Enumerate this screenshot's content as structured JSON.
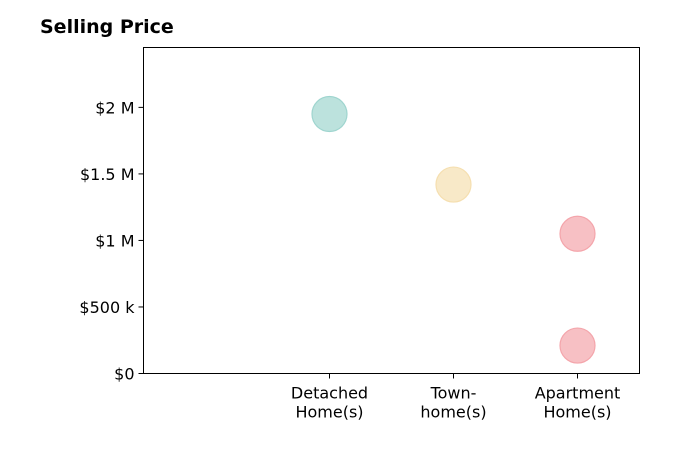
{
  "chart_data": {
    "type": "scatter",
    "title": "Selling Price",
    "categories": [
      "Detached Home(s)",
      "Town-home(s)",
      "Apartment Home(s)"
    ],
    "category_tick_lines": [
      [
        "Detached",
        "Home(s)"
      ],
      [
        "Town-",
        "home(s)"
      ],
      [
        "Apartment",
        "Home(s)"
      ]
    ],
    "yticks": [
      {
        "value": 0,
        "label": "$0"
      },
      {
        "value": 500000,
        "label": "$500 k"
      },
      {
        "value": 1000000,
        "label": "$1 M"
      },
      {
        "value": 1500000,
        "label": "$1.5 M"
      },
      {
        "value": 2000000,
        "label": "$2 M"
      }
    ],
    "ylim": [
      0,
      2450000
    ],
    "xlim": [
      -0.5,
      3.5
    ],
    "grid": false,
    "points": [
      {
        "category": "Detached Home(s)",
        "x": 1,
        "y": 1950000,
        "color": "#9fd5cf"
      },
      {
        "category": "Town-home(s)",
        "x": 2,
        "y": 1420000,
        "color": "#f5dfb0"
      },
      {
        "category": "Apartment Home(s)",
        "x": 3,
        "y": 1050000,
        "color": "#f4a5ab"
      },
      {
        "category": "Apartment Home(s)",
        "x": 3,
        "y": 210000,
        "color": "#f4a5ab"
      }
    ]
  }
}
